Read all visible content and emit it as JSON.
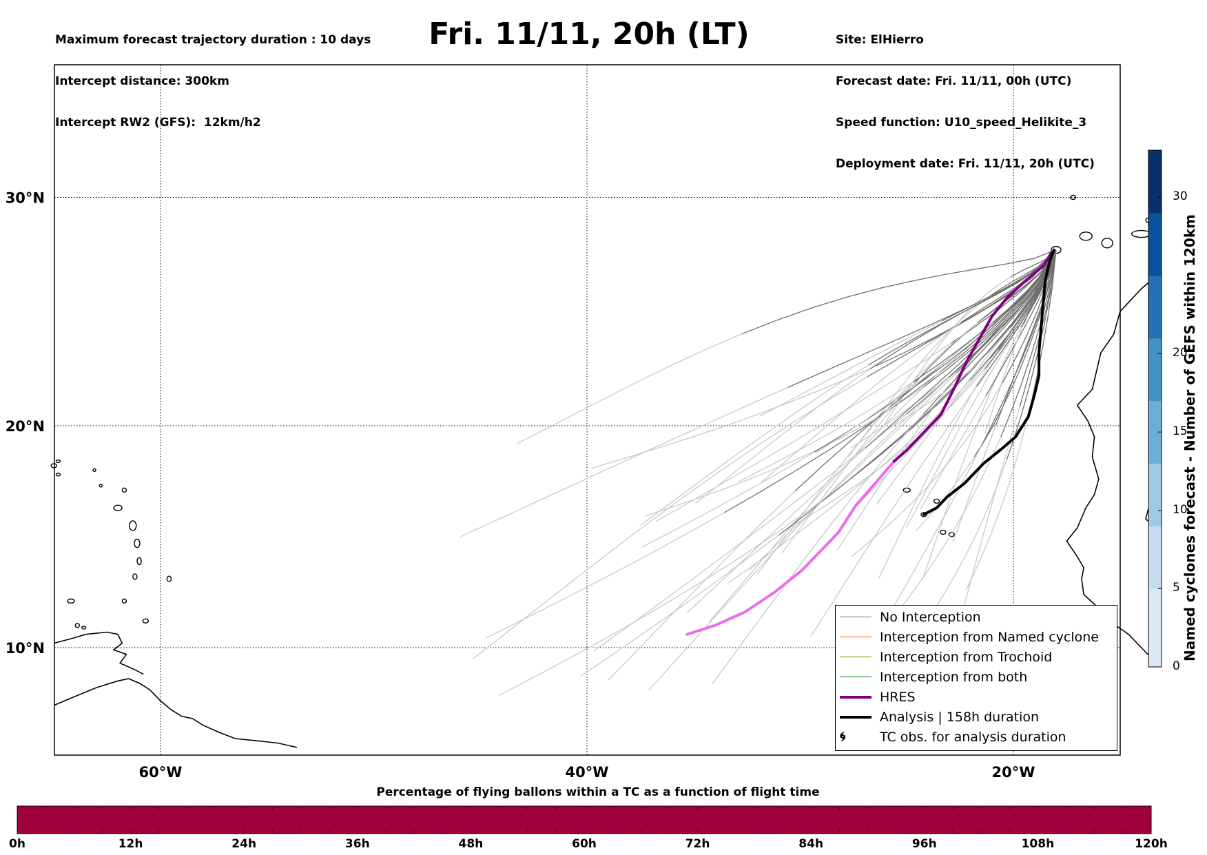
{
  "header": {
    "left_lines": [
      "Maximum forecast trajectory duration : 10 days",
      "Intercept distance: 300km",
      "Intercept RW2 (GFS):  12km/h2"
    ],
    "title": "Fri. 11/11, 20h (LT)",
    "right_lines": [
      "Site: ElHierro",
      "Forecast date: Fri. 11/11, 00h (UTC)",
      "Speed function: U10_speed_Helikite_3",
      "Deployment date: Fri. 11/11, 20h (UTC)"
    ]
  },
  "map": {
    "lon_range": [
      -65,
      15
    ],
    "lat_range": [
      5.5,
      35
    ],
    "note_lon_range_is_data_units": true,
    "lat_ticks": [
      "30°N",
      "20°N",
      "10°N"
    ],
    "lat_tick_values": [
      30,
      20,
      10
    ],
    "lon_ticks": [
      "60°W",
      "40°W",
      "20°W"
    ],
    "lon_tick_values": [
      -60,
      -40,
      -20
    ],
    "grid": "dotted",
    "site": {
      "lon": -18.0,
      "lat": 27.7
    }
  },
  "legend": {
    "items": [
      {
        "label": "No Interception",
        "color": "#6f6f6f",
        "style": "thin"
      },
      {
        "label": "Interception from Named cyclone",
        "color": "#ff4500",
        "style": "thin"
      },
      {
        "label": "Interception from Trochoid",
        "color": "#808000",
        "style": "thin"
      },
      {
        "label": "Interception from both",
        "color": "#008000",
        "style": "thin"
      },
      {
        "label": "HRES",
        "color": "#800080",
        "style": "thick"
      },
      {
        "label": "Analysis | 158h duration",
        "color": "#000000",
        "style": "thick"
      },
      {
        "label": "TC obs. for analysis duration",
        "color": "#000000",
        "style": "cyclone-symbols"
      }
    ],
    "placement": "bottom-right"
  },
  "colorbar": {
    "label": "Named cyclones forecast - Number of GEFS within 120km",
    "ticks": [
      "0",
      "5",
      "10",
      "15",
      "20",
      "30"
    ],
    "tick_values": [
      0,
      5,
      10,
      15,
      20,
      30
    ],
    "max": 33,
    "colors": [
      "#dbe7f5",
      "#c6dbef",
      "#9ecae1",
      "#6baed6",
      "#4292c6",
      "#2171b5",
      "#08519c",
      "#08306b"
    ]
  },
  "percentage_bar": {
    "title": "Percentage of flying ballons within a TC as a function of flight time",
    "color": "#a0003c",
    "ticks": [
      "0h",
      "12h",
      "24h",
      "36h",
      "48h",
      "60h",
      "72h",
      "84h",
      "96h",
      "108h",
      "120h"
    ],
    "max_hours": 120,
    "cell_hours": 3
  },
  "trajectories": {
    "hres": [
      [
        -18.2,
        27.6
      ],
      [
        -18.6,
        27.0
      ],
      [
        -19.5,
        26.3
      ],
      [
        -20.3,
        25.6
      ],
      [
        -21.0,
        24.8
      ],
      [
        -21.6,
        23.8
      ],
      [
        -22.2,
        22.8
      ],
      [
        -22.8,
        21.6
      ],
      [
        -23.4,
        20.5
      ],
      [
        -24.3,
        19.6
      ],
      [
        -25.0,
        18.9
      ],
      [
        -25.6,
        18.4
      ]
    ],
    "hres_early": [
      [
        -25.6,
        18.4
      ],
      [
        -26.4,
        17.5
      ],
      [
        -27.4,
        16.4
      ],
      [
        -28.2,
        15.2
      ],
      [
        -29.0,
        14.4
      ],
      [
        -29.9,
        13.5
      ],
      [
        -31.2,
        12.5
      ],
      [
        -32.6,
        11.6
      ],
      [
        -34.0,
        11.0
      ],
      [
        -35.3,
        10.6
      ]
    ],
    "analysis": [
      [
        -18.1,
        27.7
      ],
      [
        -18.3,
        27.2
      ],
      [
        -18.5,
        26.4
      ],
      [
        -18.6,
        25.4
      ],
      [
        -18.7,
        24.3
      ],
      [
        -18.8,
        23.2
      ],
      [
        -18.8,
        22.2
      ],
      [
        -19.0,
        21.4
      ],
      [
        -19.3,
        20.4
      ],
      [
        -19.9,
        19.5
      ],
      [
        -20.5,
        19.0
      ],
      [
        -21.4,
        18.3
      ],
      [
        -22.3,
        17.4
      ],
      [
        -23.1,
        16.8
      ],
      [
        -23.6,
        16.3
      ],
      [
        -24.2,
        16.0
      ]
    ]
  }
}
